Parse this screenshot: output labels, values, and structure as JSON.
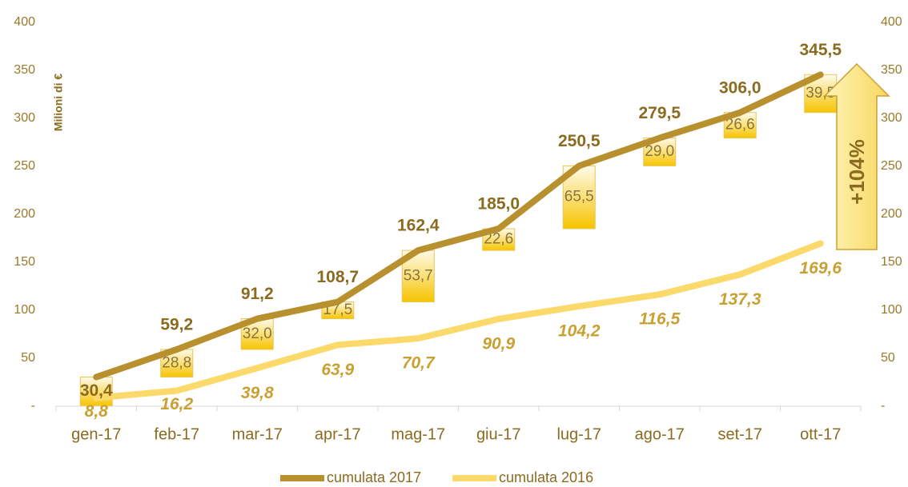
{
  "chart_data": {
    "type": "line",
    "y_label": "Milioni di €",
    "annotation": "+104%",
    "categories": [
      "gen-17",
      "feb-17",
      "mar-17",
      "apr-17",
      "mag-17",
      "giu-17",
      "lug-17",
      "ago-17",
      "set-17",
      "ott-17"
    ],
    "series": [
      {
        "name": "cumulata 2017",
        "color": "#b8902e",
        "values": [
          30.4,
          59.2,
          91.2,
          108.7,
          162.4,
          185.0,
          250.5,
          279.5,
          306.0,
          345.5
        ],
        "value_labels": [
          "30,4",
          "59,2",
          "91,2",
          "108,7",
          "162,4",
          "185,0",
          "250,5",
          "279,5",
          "306,0",
          "345,5"
        ]
      },
      {
        "name": "cumulata 2016",
        "color": "#fbd96a",
        "values": [
          8.8,
          16.2,
          39.8,
          63.9,
          70.7,
          90.9,
          104.2,
          116.5,
          137.3,
          169.6
        ],
        "value_labels": [
          "8,8",
          "16,2",
          "39,8",
          "63,9",
          "70,7",
          "90,9",
          "104,2",
          "116,5",
          "137,3",
          "169,6"
        ]
      }
    ],
    "increments": {
      "type": "bar",
      "color": "#f7c400",
      "values": [
        30.4,
        28.8,
        32.0,
        17.5,
        53.7,
        22.6,
        65.5,
        29.0,
        26.6,
        39.5
      ],
      "value_labels": [
        null,
        "28,8",
        "32,0",
        "17,5",
        "53,7",
        "22,6",
        "65,5",
        "29,0",
        "26,6",
        "39,5"
      ]
    },
    "ylim": [
      0,
      400
    ],
    "yticks": [
      {
        "value": 0,
        "label": "-"
      },
      50,
      100,
      150,
      200,
      250,
      300,
      350,
      400
    ],
    "y2lim": [
      0,
      400
    ],
    "y2ticks": [
      {
        "value": 0,
        "label": "-"
      },
      50,
      100,
      150,
      200,
      250,
      300,
      350,
      400
    ],
    "legend": "bottom"
  }
}
